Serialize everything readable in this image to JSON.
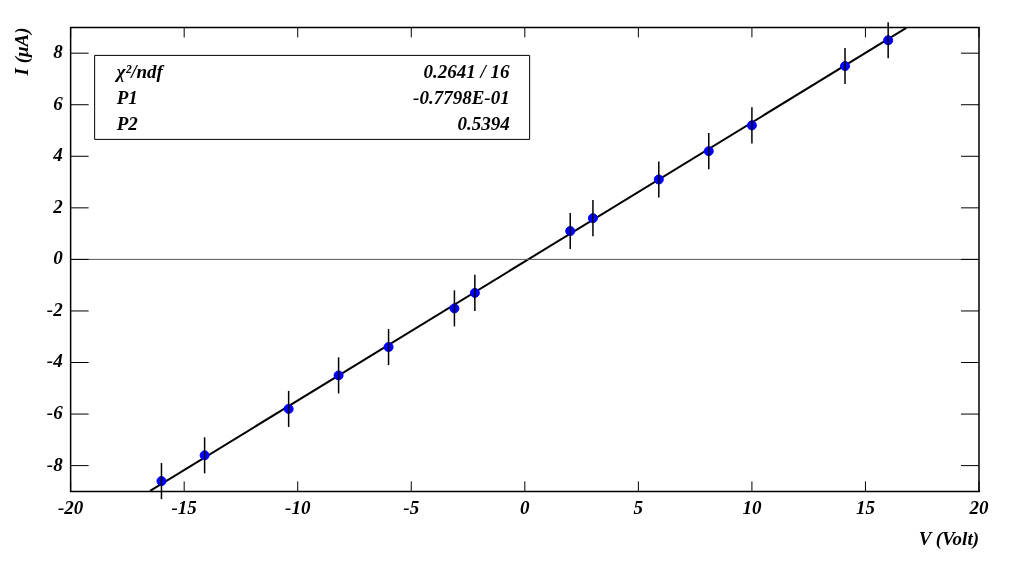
{
  "chart_data": {
    "type": "scatter",
    "xlabel": "V (Volt)",
    "ylabel": "I (μA)",
    "xlim": [
      -20,
      20
    ],
    "xticks": [
      -20,
      -15,
      -10,
      -5,
      0,
      5,
      10,
      15,
      20
    ],
    "ylim": [
      -9,
      9
    ],
    "yticks": [
      -8,
      -6,
      -4,
      -2,
      0,
      2,
      4,
      6,
      8
    ],
    "grid": false,
    "legend": false,
    "series": [
      {
        "marker": "circle",
        "color": "#0000ff",
        "x": [
          -16,
          -14.1,
          -10.4,
          -8.2,
          -6,
          -3.1,
          -2.2,
          2,
          3,
          5.9,
          8.1,
          10,
          14.1,
          16
        ],
        "values": [
          -8.6,
          -7.6,
          -5.8,
          -4.5,
          -3.4,
          -1.9,
          -1.3,
          1.1,
          1.6,
          3.1,
          4.2,
          5.2,
          7.5,
          8.5
        ],
        "errors": [
          0.7,
          0.7,
          0.7,
          0.7,
          0.7,
          0.7,
          0.7,
          0.7,
          0.7,
          0.7,
          0.7,
          0.7,
          0.7,
          0.7
        ]
      },
      {
        "type": "line",
        "marker": "none",
        "color": "#000000",
        "line_style": "solid",
        "x": [
          -16.5,
          16.8
        ],
        "values": [
          -8.98,
          8.98
        ]
      }
    ],
    "ref_lines": [
      {
        "axis": "y",
        "value": 0,
        "color": "#555555"
      }
    ],
    "annotations": [
      "χ²/ndf 0.2641 / 16",
      "P1 -0.7798E-01",
      "P2 0.5394"
    ]
  }
}
